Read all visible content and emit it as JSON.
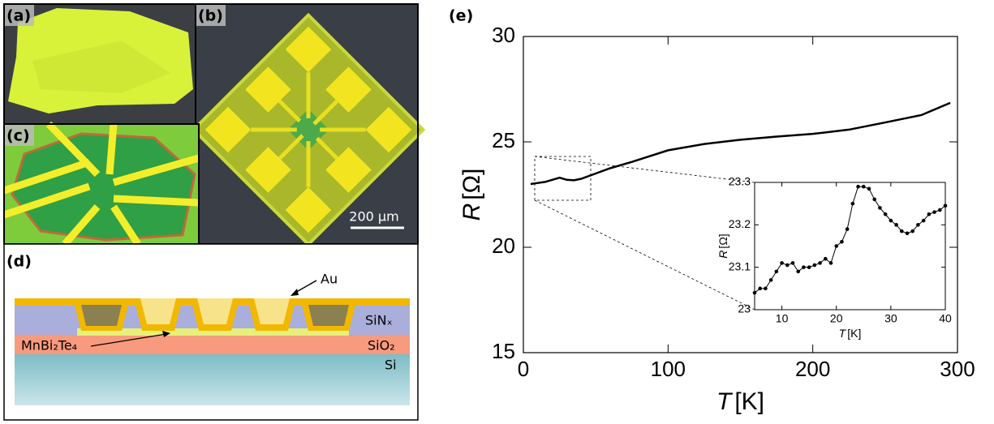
{
  "panels": {
    "a": "(a)",
    "b": "(b)",
    "c": "(c)",
    "d": "(d)",
    "e": "(e)"
  },
  "scale_bar": "200 µm",
  "diagram": {
    "au": "Au",
    "sinx": "SiNₓ",
    "mnbite": "MnBi₂Te₄",
    "sio2": "SiO₂",
    "si": "Si"
  },
  "chart_data": [
    {
      "type": "line",
      "xlabel": {
        "symbol": "T",
        "unit": "[K]"
      },
      "ylabel": {
        "symbol": "R",
        "unit": "[Ω]"
      },
      "x": [
        5,
        10,
        15,
        20,
        25,
        30,
        35,
        40,
        50,
        60,
        75,
        100,
        125,
        150,
        175,
        200,
        225,
        250,
        275,
        295
      ],
      "values": [
        23.0,
        23.05,
        23.1,
        23.2,
        23.3,
        23.2,
        23.18,
        23.25,
        23.5,
        23.75,
        24.05,
        24.6,
        24.9,
        25.1,
        25.25,
        25.38,
        25.58,
        25.92,
        26.27,
        26.85
      ],
      "color": "#000000",
      "xlim": [
        0,
        300
      ],
      "ylim": [
        15,
        30
      ],
      "xticks": [
        0,
        100,
        200,
        300
      ],
      "yticks": [
        15,
        20,
        25,
        30
      ]
    },
    {
      "type": "line-markers",
      "xlabel": {
        "symbol": "T",
        "unit": "[K]"
      },
      "ylabel": {
        "symbol": "R",
        "unit": "[Ω]"
      },
      "x": [
        5,
        6,
        7,
        8,
        9,
        10,
        11,
        12,
        13,
        14,
        15,
        16,
        17,
        18,
        19,
        20,
        21,
        22,
        23,
        24,
        25,
        26,
        27,
        28,
        29,
        30,
        31,
        32,
        33,
        34,
        35,
        36,
        37,
        38,
        39,
        40
      ],
      "values": [
        23.04,
        23.05,
        23.05,
        23.07,
        23.09,
        23.11,
        23.105,
        23.11,
        23.09,
        23.1,
        23.1,
        23.105,
        23.11,
        23.12,
        23.11,
        23.15,
        23.16,
        23.19,
        23.25,
        23.29,
        23.29,
        23.285,
        23.26,
        23.24,
        23.225,
        23.21,
        23.2,
        23.185,
        23.18,
        23.185,
        23.2,
        23.21,
        23.225,
        23.23,
        23.235,
        23.245
      ],
      "color": "#000000",
      "xlim": [
        5,
        40
      ],
      "ylim": [
        23,
        23.3
      ],
      "xticks": [
        10,
        20,
        30,
        40
      ],
      "yticks": [
        23,
        23.1,
        23.2,
        23.3
      ]
    }
  ]
}
